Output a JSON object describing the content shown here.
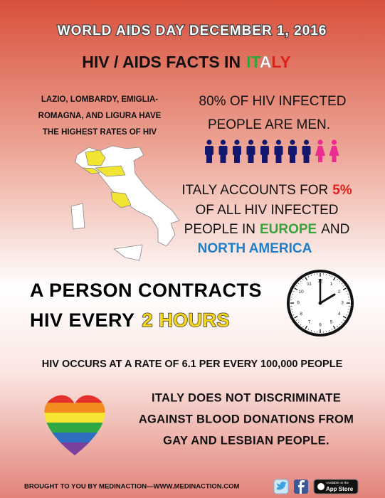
{
  "header": {
    "event": "WORLD AIDS DAY DECEMBER 1, 2016",
    "title": [
      "HIV / AIDS FACTS IN",
      "IT",
      "A",
      "LY"
    ]
  },
  "regions": {
    "lines": [
      "LAZIO, LOMBARDY, EMIGLIA-",
      "ROMAGNA, AND LIGURA HAVE",
      "THE HIGHEST RATES OF HIV"
    ]
  },
  "men": {
    "lines": [
      "80% OF HIV INFECTED",
      "PEOPLE ARE MEN."
    ]
  },
  "share": {
    "lines": [
      [
        "ITALY ACCOUNTS FOR",
        "5%"
      ],
      [
        "OF ALL HIV INFECTED"
      ],
      [
        "PEOPLE IN",
        "EUROPE",
        "AND"
      ],
      [
        "NORTH AMERICA"
      ]
    ]
  },
  "frequency": {
    "lines": [
      [
        "A PERSON CONTRACTS"
      ],
      [
        "HIV EVERY",
        "2 HOURS"
      ]
    ]
  },
  "clock": {
    "numbers": [
      "12",
      "1",
      "2",
      "3",
      "4",
      "5",
      "6",
      "7",
      "8",
      "9",
      "10",
      "11"
    ]
  },
  "rate": "HIV OCCURS AT A RATE OF 6.1 PER EVERY 100,000 PEOPLE",
  "donation": {
    "lines": [
      "ITALY DOES NOT DISCRIMINATE",
      "AGAINST BLOOD DONATIONS FROM",
      "GAY AND LESBIAN  PEOPLE."
    ]
  },
  "footer": {
    "credit": "BROUGHT TO YOU BY MEDINACTION—WWW.MEDINACTION.COM",
    "badge": [
      "Available on the",
      "App Store"
    ]
  }
}
